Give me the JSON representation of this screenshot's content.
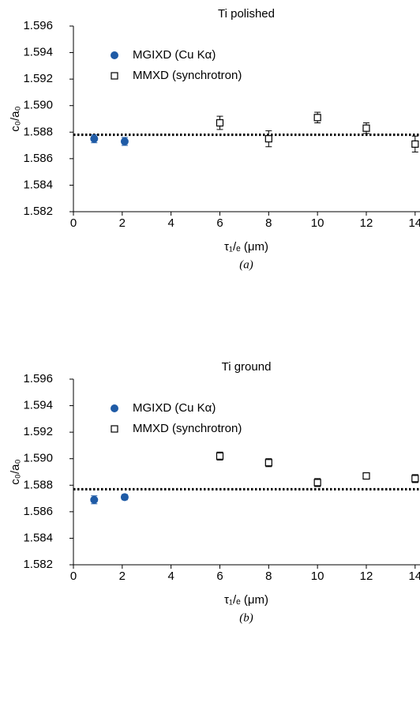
{
  "chart_data": [
    {
      "type": "scatter",
      "title": "Ti polished",
      "panel_label": "(a)",
      "xlabel": "τ₁/ₑ (μm)",
      "ylabel": "c₀/a₀",
      "xlim": [
        0,
        14.2
      ],
      "ylim": [
        1.582,
        1.596
      ],
      "xticks": [
        0,
        2,
        4,
        6,
        8,
        10,
        12,
        14
      ],
      "yticks": [
        1.582,
        1.584,
        1.586,
        1.588,
        {
          "value": 1.59,
          "label": "1.590"
        },
        1.592,
        1.594,
        1.596
      ],
      "reference_line": 1.5878,
      "series": [
        {
          "name": "MGIXD (Cu Kα)",
          "color": "#1f5ba6",
          "marker": "circle",
          "x": [
            0.85,
            2.1
          ],
          "values": [
            1.5875,
            1.5873
          ],
          "errors": [
            0.0003,
            0.0003
          ]
        },
        {
          "name": "MMXD (synchrotron)",
          "color": "#000000",
          "marker": "open-square",
          "x": [
            6,
            8,
            10,
            12,
            14
          ],
          "values": [
            1.5887,
            1.5875,
            1.5891,
            1.5883,
            1.5871
          ],
          "errors": [
            0.0005,
            0.0006,
            0.0004,
            0.0004,
            0.0006
          ]
        }
      ]
    },
    {
      "type": "scatter",
      "title": "Ti ground",
      "panel_label": "(b)",
      "xlabel": "τ₁/ₑ (μm)",
      "ylabel": "c₀/a₀",
      "xlim": [
        0,
        14.2
      ],
      "ylim": [
        1.582,
        1.596
      ],
      "xticks": [
        0,
        2,
        4,
        6,
        8,
        10,
        12,
        14
      ],
      "yticks": [
        1.582,
        1.584,
        1.586,
        1.588,
        {
          "value": 1.59,
          "label": "1.590"
        },
        1.592,
        1.594,
        1.596
      ],
      "reference_line": 1.5877,
      "series": [
        {
          "name": "MGIXD (Cu Kα)",
          "color": "#1f5ba6",
          "marker": "circle",
          "x": [
            0.85,
            2.1
          ],
          "values": [
            1.5869,
            1.5871
          ],
          "errors": [
            0.0003,
            0.0002
          ]
        },
        {
          "name": "MMXD (synchrotron)",
          "color": "#000000",
          "marker": "open-square",
          "x": [
            6,
            8,
            10,
            12,
            14
          ],
          "values": [
            1.5902,
            1.5897,
            1.5882,
            1.5887,
            1.5885
          ],
          "errors": [
            0.0003,
            0.0003,
            0.0003,
            0.0002,
            0.0003
          ]
        }
      ]
    }
  ]
}
